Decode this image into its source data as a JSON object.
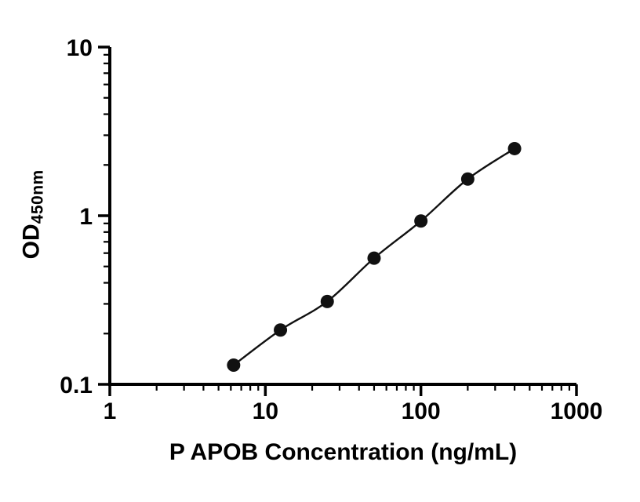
{
  "chart_data": {
    "type": "scatter",
    "title": "",
    "xlabel": "P APOB Concentration (ng/mL)",
    "ylabel_main": "OD",
    "ylabel_sub": "450nm",
    "x_scale": "log",
    "y_scale": "log",
    "xlim": [
      1,
      1000
    ],
    "ylim": [
      0.1,
      10
    ],
    "x_ticks": [
      1,
      10,
      100,
      1000
    ],
    "x_tick_labels": [
      "1",
      "10",
      "100",
      "1000"
    ],
    "y_ticks": [
      0.1,
      1,
      10
    ],
    "y_tick_labels": [
      "0.1",
      "1",
      "10"
    ],
    "grid": "off",
    "legend": "none",
    "points": [
      {
        "x": 6.25,
        "y": 0.13
      },
      {
        "x": 12.5,
        "y": 0.21
      },
      {
        "x": 25,
        "y": 0.31
      },
      {
        "x": 50,
        "y": 0.56
      },
      {
        "x": 100,
        "y": 0.93
      },
      {
        "x": 200,
        "y": 1.65
      },
      {
        "x": 400,
        "y": 2.5
      }
    ],
    "colors": {
      "axis": "#000000",
      "marker": "#111111",
      "line": "#111111",
      "background": "#ffffff"
    }
  }
}
